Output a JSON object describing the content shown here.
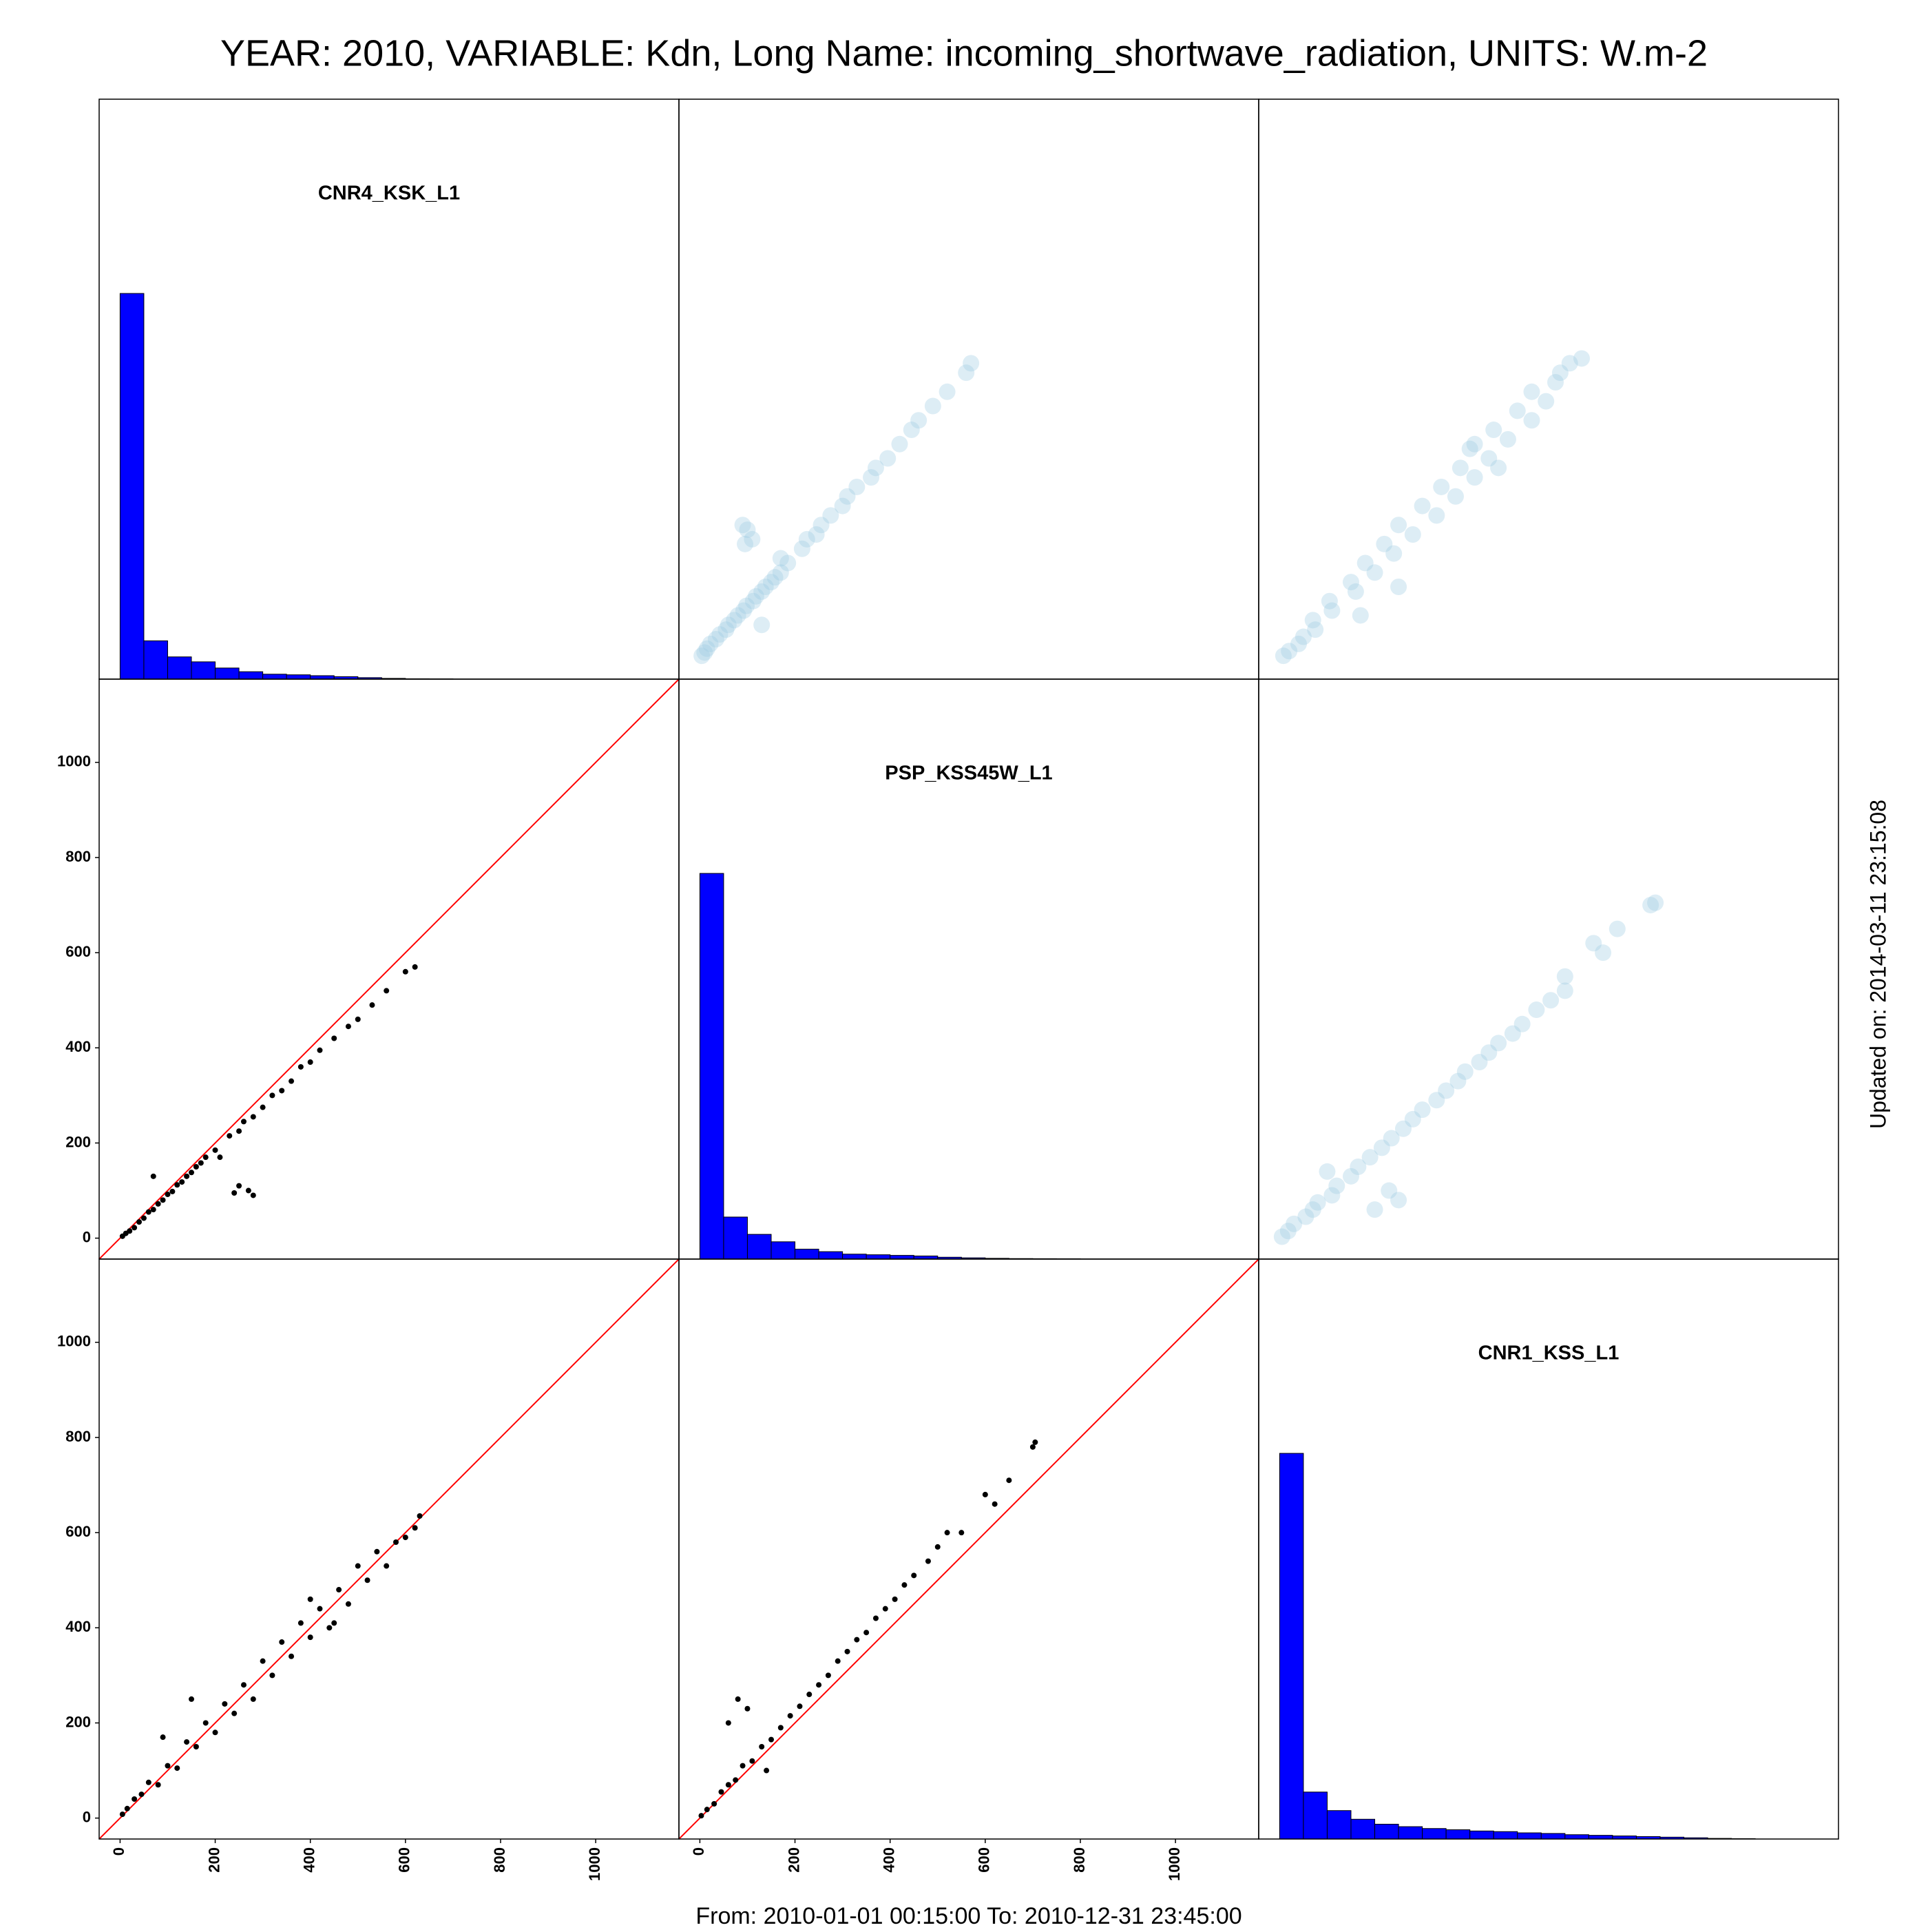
{
  "chart_data": {
    "type": "scatter_matrix",
    "title": "YEAR: 2010, VARIABLE: Kdn, Long Name: incoming_shortwave_radiation, UNITS: W.m-2",
    "footer": "From: 2010-01-01 00:15:00 To: 2010-12-31 23:45:00",
    "side_note": "Updated on: 2014-03-11 23:15:08",
    "xlim": [
      -44,
      1175
    ],
    "ylim": [
      -44,
      1175
    ],
    "xticks": [
      0,
      200,
      400,
      600,
      800,
      1000
    ],
    "yticks": [
      0,
      200,
      400,
      600,
      800,
      1000
    ],
    "hist_color": "#0000ff",
    "point_color": "#000000",
    "density_color": "#9ecae1",
    "line_color": "#ff0000",
    "variables": [
      {
        "name": "CNR4_KSK_L1",
        "bins": [
          0,
          50,
          100,
          150,
          200,
          250,
          300,
          350,
          400,
          450,
          500,
          550,
          600,
          650,
          700
        ],
        "counts": [
          3120,
          310,
          180,
          140,
          90,
          60,
          40,
          35,
          28,
          20,
          12,
          6,
          3,
          2
        ]
      },
      {
        "name": "PSP_KSS45W_L1",
        "bins": [
          0,
          50,
          100,
          150,
          200,
          250,
          300,
          350,
          400,
          450,
          500,
          550,
          600,
          650,
          700,
          750,
          800
        ],
        "counts": [
          3120,
          340,
          200,
          140,
          80,
          60,
          40,
          35,
          30,
          25,
          15,
          10,
          6,
          4,
          3,
          2
        ]
      },
      {
        "name": "CNR1_KSS_L1",
        "bins": [
          0,
          50,
          100,
          150,
          200,
          250,
          300,
          350,
          400,
          450,
          500,
          550,
          600,
          650,
          700,
          750,
          800,
          850,
          900,
          950,
          1000
        ],
        "counts": [
          3120,
          380,
          230,
          160,
          120,
          100,
          85,
          75,
          65,
          60,
          50,
          45,
          35,
          30,
          25,
          20,
          15,
          10,
          5,
          3
        ]
      }
    ],
    "pairs": [
      {
        "x": [
          5,
          12,
          20,
          30,
          40,
          50,
          60,
          70,
          80,
          90,
          100,
          110,
          120,
          130,
          140,
          150,
          160,
          170,
          180,
          200,
          210,
          230,
          250,
          260,
          280,
          300,
          320,
          340,
          360,
          380,
          400,
          420,
          450,
          480,
          500,
          530,
          560,
          600,
          620,
          250,
          280,
          270,
          240,
          70
        ],
        "y": [
          4,
          10,
          15,
          22,
          34,
          42,
          55,
          60,
          72,
          80,
          92,
          98,
          112,
          118,
          130,
          138,
          150,
          158,
          170,
          185,
          170,
          215,
          225,
          245,
          255,
          275,
          300,
          310,
          330,
          360,
          370,
          395,
          420,
          445,
          460,
          490,
          520,
          560,
          570,
          110,
          90,
          100,
          95,
          130
        ]
      },
      {
        "x": [
          5,
          15,
          30,
          45,
          60,
          80,
          100,
          120,
          140,
          160,
          180,
          200,
          220,
          240,
          260,
          280,
          300,
          320,
          340,
          360,
          380,
          400,
          420,
          440,
          460,
          480,
          500,
          520,
          540,
          560,
          580,
          600,
          620,
          630,
          90,
          150,
          400,
          450
        ],
        "y": [
          8,
          20,
          40,
          50,
          75,
          70,
          110,
          105,
          160,
          150,
          200,
          180,
          240,
          220,
          280,
          250,
          330,
          300,
          370,
          340,
          410,
          380,
          440,
          400,
          480,
          450,
          530,
          500,
          560,
          530,
          580,
          590,
          610,
          635,
          170,
          250,
          460,
          410
        ]
      },
      {
        "x": [
          3,
          15,
          30,
          45,
          60,
          75,
          90,
          110,
          130,
          150,
          170,
          190,
          210,
          230,
          250,
          270,
          290,
          310,
          330,
          350,
          370,
          390,
          410,
          430,
          450,
          480,
          500,
          520,
          550,
          600,
          620,
          650,
          700,
          705,
          80,
          100,
          60,
          140
        ],
        "y": [
          5,
          18,
          30,
          55,
          70,
          80,
          110,
          120,
          150,
          165,
          190,
          215,
          235,
          260,
          280,
          300,
          330,
          350,
          375,
          390,
          420,
          440,
          460,
          490,
          510,
          540,
          570,
          600,
          600,
          680,
          660,
          710,
          780,
          790,
          250,
          230,
          200,
          100
        ]
      }
    ]
  }
}
